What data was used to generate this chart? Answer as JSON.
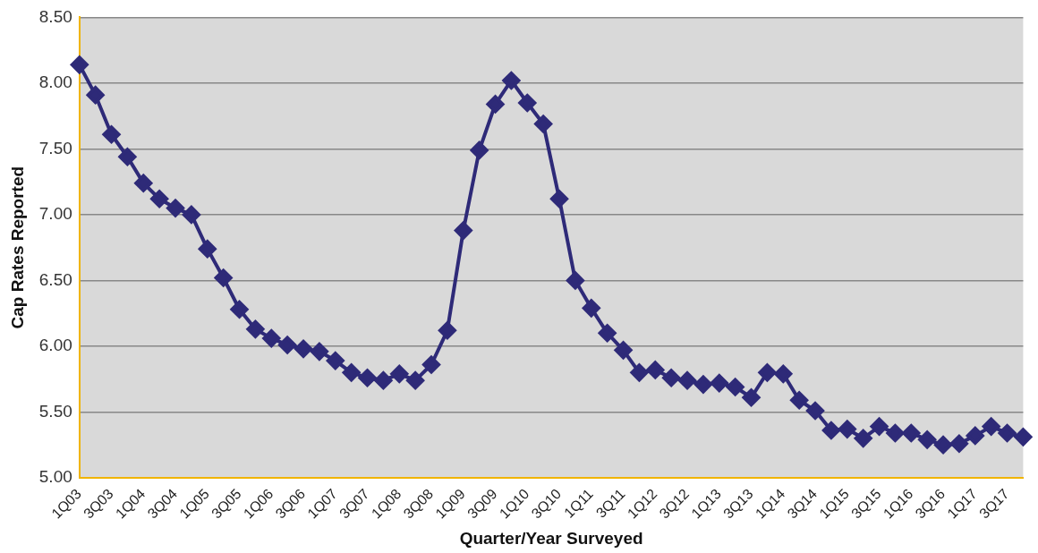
{
  "chart_data": {
    "type": "line",
    "xlabel": "Quarter/Year Surveyed",
    "ylabel": "Cap Rates Reported",
    "categories": [
      "1Q03",
      null,
      "3Q03",
      null,
      "1Q04",
      null,
      "3Q04",
      null,
      "1Q05",
      null,
      "3Q05",
      null,
      "1Q06",
      null,
      "3Q06",
      null,
      "1Q07",
      null,
      "3Q07",
      null,
      "1Q08",
      null,
      "3Q08",
      null,
      "1Q09",
      null,
      "3Q09",
      null,
      "1Q10",
      null,
      "3Q10",
      null,
      "1Q11",
      null,
      "3Q11",
      null,
      "1Q12",
      null,
      "3Q12",
      null,
      "1Q13",
      null,
      "3Q13",
      null,
      "1Q14",
      null,
      "3Q14",
      null,
      "1Q15",
      null,
      "3Q15",
      null,
      "1Q16",
      null,
      "3Q16",
      null,
      "1Q17",
      null,
      "3Q17",
      null
    ],
    "series": [
      {
        "color": "#2e2a78",
        "values": [
          8.14,
          7.91,
          7.61,
          7.44,
          7.24,
          7.12,
          7.05,
          7.0,
          6.74,
          6.52,
          6.28,
          6.13,
          6.06,
          6.01,
          5.98,
          5.96,
          5.89,
          5.8,
          5.76,
          5.74,
          5.79,
          5.74,
          5.86,
          6.12,
          6.88,
          7.49,
          7.84,
          8.02,
          7.85,
          7.69,
          7.12,
          6.5,
          6.29,
          6.1,
          5.97,
          5.8,
          5.82,
          5.76,
          5.74,
          5.71,
          5.72,
          5.69,
          5.61,
          5.8,
          5.79,
          5.59,
          5.51,
          5.36,
          5.37,
          5.3,
          5.39,
          5.34,
          5.34,
          5.29,
          5.25,
          5.26,
          5.32,
          5.39,
          5.34,
          5.31
        ]
      }
    ],
    "ylim": [
      5,
      8.5
    ],
    "yticks": [
      {
        "value": 5,
        "label": "5.00"
      },
      {
        "value": 5.5,
        "label": "5.50"
      },
      {
        "value": 6,
        "label": "6.00"
      },
      {
        "value": 6.5,
        "label": "6.50"
      },
      {
        "value": 7,
        "label": "7.00"
      },
      {
        "value": 7.5,
        "label": "7.50"
      },
      {
        "value": 8,
        "label": "8.00"
      },
      {
        "value": 8.5,
        "label": "8.50"
      }
    ],
    "grid": "y",
    "legend": false,
    "marker": "diamond",
    "line_style": "solid"
  }
}
